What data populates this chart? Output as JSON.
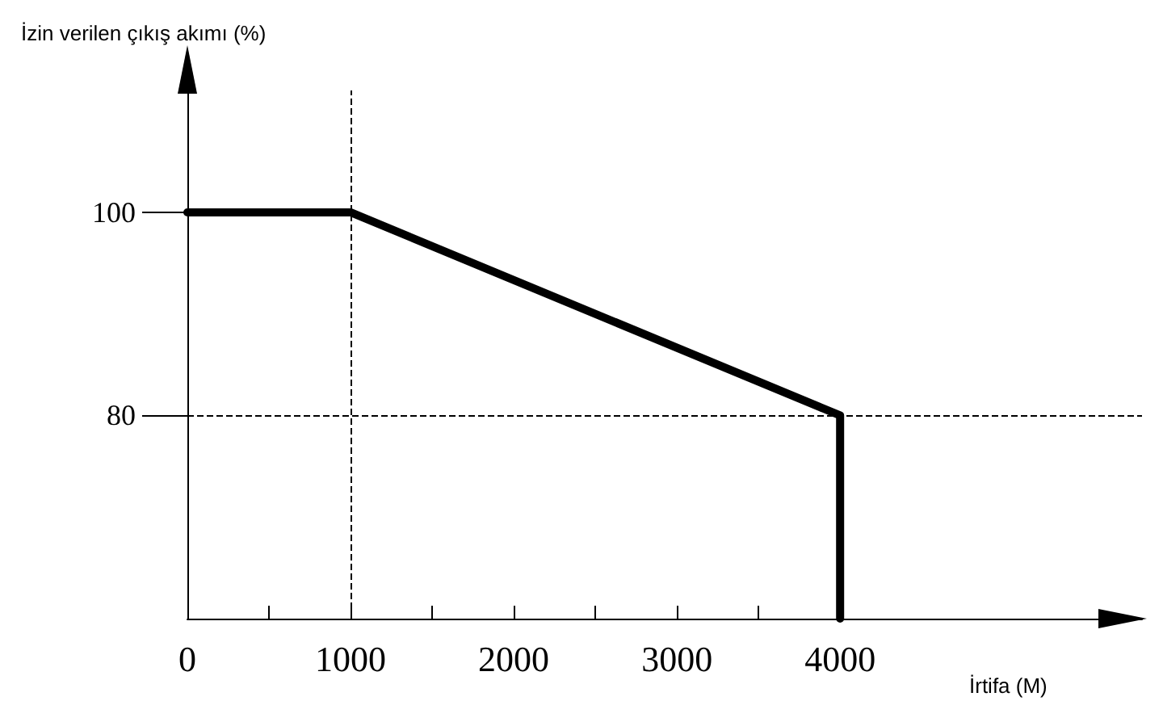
{
  "chart_data": {
    "type": "line",
    "xlabel": "İrtifa (M)",
    "ylabel": "İzin verilen çıkış akımı (%)",
    "series": [
      {
        "color": "#000000",
        "x": [
          0,
          1000,
          4000,
          4000
        ],
        "values": [
          100,
          100,
          80,
          60
        ]
      }
    ],
    "xlim": [
      0,
      5850
    ],
    "ylim": [
      60,
      112
    ],
    "xticks": [
      0,
      {
        "value": 500,
        "label": null
      },
      1000,
      {
        "value": 1500,
        "label": null
      },
      2000,
      {
        "value": 2500,
        "label": null
      },
      3000,
      {
        "value": 3500,
        "label": null
      },
      4000
    ],
    "yticks": [
      80,
      100
    ],
    "ref_lines": [
      {
        "axis": "x",
        "value": 1000,
        "line_style": "dashed"
      },
      {
        "axis": "y",
        "value": 80,
        "line_style": "dashed"
      }
    ],
    "grid": false,
    "marker": "none",
    "line_style": "solid"
  }
}
